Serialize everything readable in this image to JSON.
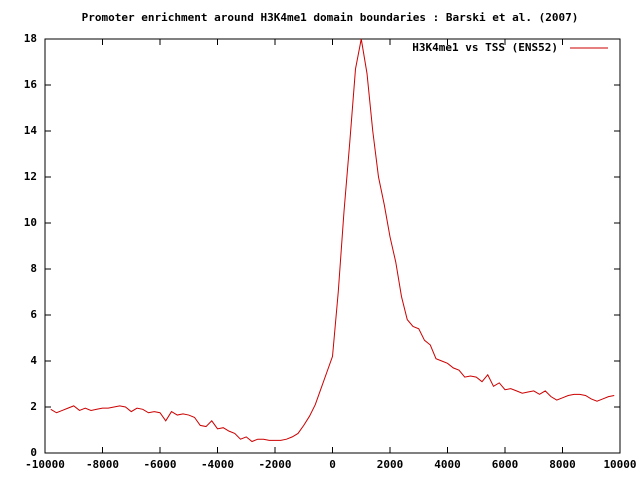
{
  "chart_data": {
    "type": "line",
    "title": "Promoter enrichment around H3K4me1 domain boundaries : Barski et al. (2007)",
    "x": [
      -9800,
      -9600,
      -9400,
      -9200,
      -9000,
      -8800,
      -8600,
      -8400,
      -8200,
      -8000,
      -7800,
      -7600,
      -7400,
      -7200,
      -7000,
      -6800,
      -6600,
      -6400,
      -6200,
      -6000,
      -5800,
      -5600,
      -5400,
      -5200,
      -5000,
      -4800,
      -4600,
      -4400,
      -4200,
      -4000,
      -3800,
      -3600,
      -3400,
      -3200,
      -3000,
      -2800,
      -2600,
      -2400,
      -2200,
      -2000,
      -1800,
      -1600,
      -1400,
      -1200,
      -1000,
      -800,
      -600,
      -400,
      -200,
      0,
      200,
      400,
      600,
      800,
      1000,
      1200,
      1400,
      1600,
      1800,
      2000,
      2200,
      2400,
      2600,
      2800,
      3000,
      3200,
      3400,
      3600,
      3800,
      4000,
      4200,
      4400,
      4600,
      4800,
      5000,
      5200,
      5400,
      5600,
      5800,
      6000,
      6200,
      6400,
      6600,
      6800,
      7000,
      7200,
      7400,
      7600,
      7800,
      8000,
      8200,
      8400,
      8600,
      8800,
      9000,
      9200,
      9400,
      9600,
      9800
    ],
    "series": [
      {
        "name": "H3K4me1 vs TSS (ENS52)",
        "color": "#cc0000",
        "values": [
          1.9,
          1.75,
          1.85,
          1.95,
          2.05,
          1.85,
          1.95,
          1.85,
          1.9,
          1.95,
          1.95,
          2.0,
          2.05,
          2.0,
          1.8,
          1.95,
          1.9,
          1.75,
          1.8,
          1.75,
          1.4,
          1.8,
          1.65,
          1.7,
          1.65,
          1.55,
          1.2,
          1.15,
          1.4,
          1.05,
          1.1,
          0.95,
          0.85,
          0.6,
          0.7,
          0.5,
          0.6,
          0.6,
          0.55,
          0.55,
          0.55,
          0.6,
          0.7,
          0.85,
          1.2,
          1.6,
          2.1,
          2.8,
          3.5,
          4.2,
          7.0,
          10.5,
          13.5,
          16.7,
          18.0,
          16.5,
          14.0,
          12.0,
          10.8,
          9.4,
          8.3,
          6.8,
          5.8,
          5.5,
          5.4,
          4.9,
          4.7,
          4.1,
          4.0,
          3.9,
          3.7,
          3.6,
          3.3,
          3.35,
          3.3,
          3.1,
          3.4,
          2.9,
          3.05,
          2.75,
          2.8,
          2.7,
          2.6,
          2.65,
          2.7,
          2.55,
          2.7,
          2.45,
          2.3,
          2.4,
          2.5,
          2.55,
          2.55,
          2.5,
          2.35,
          2.25,
          2.35,
          2.45,
          2.5
        ]
      }
    ],
    "xlim": [
      -10000,
      10000
    ],
    "xticks": [
      -10000,
      -8000,
      -6000,
      -4000,
      -2000,
      0,
      2000,
      4000,
      6000,
      8000,
      10000
    ],
    "ylim": [
      0,
      18
    ],
    "yticks": [
      0,
      2,
      4,
      6,
      8,
      10,
      12,
      14,
      16,
      18
    ],
    "legend": "top-right"
  }
}
